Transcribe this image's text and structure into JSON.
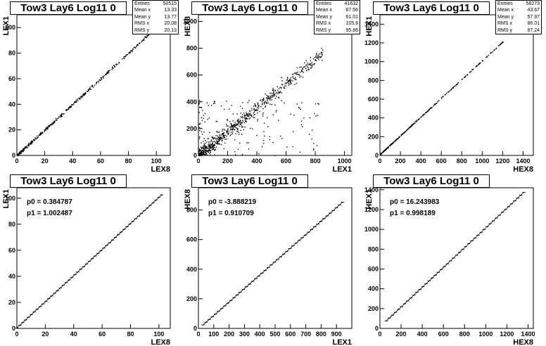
{
  "canvas": {
    "background": "#ffffff",
    "frame_color": "#000000"
  },
  "chart_data": [
    {
      "type": "scatter",
      "title": "Tow3 Lay6 Log11 0",
      "xlabel": "LEX8",
      "ylabel": "LEX1",
      "xlim": [
        0,
        110
      ],
      "ylim": [
        0,
        110
      ],
      "xticks": [
        0,
        20,
        40,
        60,
        80,
        100
      ],
      "yticks": [
        0,
        20,
        40,
        60,
        80,
        100
      ],
      "stats": [
        [
          "Entries",
          "50515"
        ],
        [
          "Mean x",
          "13.33"
        ],
        [
          "Mean y",
          "13.77"
        ],
        [
          "RMS x",
          "20.08"
        ],
        [
          "RMS y",
          "20.13"
        ]
      ],
      "density": {
        "slope": 1.0,
        "intercept": 0.4,
        "xmax": 97,
        "npoints": 420,
        "noise": 0
      }
    },
    {
      "type": "scatter",
      "title": "Tow3 Lay6 Log11 0",
      "xlabel": "LEX1",
      "ylabel": "HEX8",
      "xlim": [
        0,
        1050
      ],
      "ylim": [
        0,
        1050
      ],
      "xticks": [
        0,
        200,
        400,
        600,
        800,
        1000
      ],
      "yticks": [
        0,
        200,
        400,
        600,
        800,
        1000
      ],
      "stats": [
        [
          "Entries",
          "41632"
        ],
        [
          "Mean x",
          "67.56"
        ],
        [
          "Mean y",
          "61.01"
        ],
        [
          "RMS x",
          "105.8"
        ],
        [
          "RMS y",
          "95.86"
        ]
      ],
      "density": {
        "slope": 0.91,
        "intercept": -3.9,
        "xmax": 850,
        "npoints": 900,
        "noise": 60
      }
    },
    {
      "type": "scatter",
      "title": "Tow3 Lay6 Log11 0",
      "xlabel": "HEX8",
      "ylabel": "HEX1",
      "xlim": [
        0,
        1500
      ],
      "ylim": [
        0,
        1500
      ],
      "xticks": [
        0,
        200,
        400,
        600,
        800,
        1000,
        1200,
        1400
      ],
      "yticks": [
        0,
        200,
        400,
        600,
        800,
        1000,
        1200,
        1400
      ],
      "stats": [
        [
          "Entries",
          "58273"
        ],
        [
          "Mean x",
          "43.67"
        ],
        [
          "Mean y",
          "57.97"
        ],
        [
          "RMS x",
          "86.01"
        ],
        [
          "RMS y",
          "87.24"
        ]
      ],
      "density": {
        "slope": 1.0,
        "intercept": 16.2,
        "xmax": 1200,
        "npoints": 320,
        "noise": 6
      }
    },
    {
      "type": "line",
      "title": "Tow3 Lay6 Log11 0",
      "xlabel": "LEX8",
      "ylabel": "LEX1",
      "xlim": [
        0,
        108
      ],
      "ylim": [
        0,
        108
      ],
      "xticks": [
        0,
        20,
        40,
        60,
        80,
        100
      ],
      "yticks": [
        0,
        20,
        40,
        60,
        80,
        100
      ],
      "fit": {
        "p0_label": "p0 = 0.384787",
        "p1_label": "p1 = 1.002487",
        "p0": 0.384787,
        "p1": 1.002487,
        "xmin": 0,
        "xmax": 102,
        "steps": 50
      }
    },
    {
      "type": "line",
      "title": "Tow3 Lay6 Log11 0",
      "xlabel": "LEX1",
      "ylabel": "HEX8",
      "xlim": [
        0,
        1000
      ],
      "ylim": [
        0,
        950
      ],
      "xticks": [
        0,
        100,
        200,
        300,
        400,
        500,
        600,
        700,
        800,
        900
      ],
      "yticks": [
        0,
        200,
        400,
        600,
        800
      ],
      "fit": {
        "p0_label": "p0 = -3.888219",
        "p1_label": "p1 = 0.910709",
        "p0": -3.888219,
        "p1": 0.910709,
        "xmin": 30,
        "xmax": 940,
        "steps": 45
      }
    },
    {
      "type": "line",
      "title": "Tow3 Lay6 Log11 0",
      "xlabel": "HEX8",
      "ylabel": "HEX1",
      "xlim": [
        0,
        1450
      ],
      "ylim": [
        0,
        1420
      ],
      "xticks": [
        0,
        200,
        400,
        600,
        800,
        1000,
        1200,
        1400
      ],
      "yticks": [
        0,
        200,
        400,
        600,
        800,
        1000,
        1200,
        1400
      ],
      "fit": {
        "p0_label": "p0 = 16.243983",
        "p1_label": "p1 = 0.998189",
        "p0": 16.243983,
        "p1": 0.998189,
        "xmin": 60,
        "xmax": 1360,
        "steps": 45
      }
    }
  ]
}
